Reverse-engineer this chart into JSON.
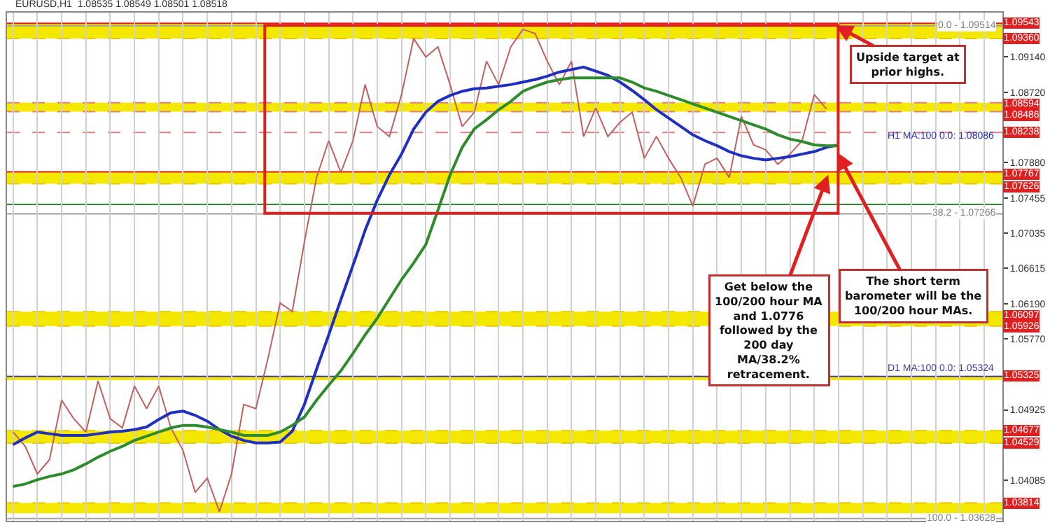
{
  "chart_data": {
    "type": "line",
    "categories": [
      null,
      null,
      null,
      null,
      null,
      null,
      null,
      null,
      null,
      null,
      null,
      null,
      null,
      null,
      null,
      null,
      null,
      null,
      null,
      null,
      null,
      null,
      null,
      null,
      null,
      null,
      null,
      null,
      null,
      null,
      null,
      null,
      null,
      null,
      null,
      null,
      null,
      null,
      null,
      null,
      null,
      null,
      null,
      null,
      null,
      null,
      null,
      null,
      null,
      null,
      null,
      null,
      null,
      null,
      null,
      null,
      null,
      null,
      null,
      null,
      null,
      null,
      null,
      null,
      null,
      null,
      null,
      null,
      null,
      null,
      null,
      null,
      null,
      null,
      null,
      null,
      null,
      null,
      null,
      null,
      null,
      null
    ],
    "series": [
      {
        "color": "#c06060",
        "values": [
          1.0466,
          1.0449,
          1.0416,
          1.0433,
          1.0504,
          1.0482,
          1.0466,
          1.0527,
          1.0482,
          1.0471,
          1.0521,
          1.0494,
          1.0521,
          1.0471,
          1.0444,
          1.0394,
          1.0411,
          1.0371,
          1.0416,
          1.0499,
          1.0494,
          1.0554,
          1.062,
          1.061,
          1.0693,
          1.077,
          1.0814,
          1.0776,
          1.0814,
          1.0881,
          1.0831,
          1.0819,
          1.0869,
          1.0936,
          1.0914,
          1.0926,
          1.0881,
          1.0831,
          1.0848,
          1.0909,
          1.0881,
          1.0926,
          1.0947,
          1.0942,
          1.0909,
          1.0881,
          1.0909,
          1.0819,
          1.0853,
          1.0819,
          1.0836,
          1.0848,
          1.0793,
          1.0819,
          1.0793,
          1.077,
          1.0736,
          1.0786,
          1.0793,
          1.077,
          1.0843,
          1.0809,
          1.0803,
          1.0786,
          1.0798,
          1.0814,
          1.0869,
          1.0852,
          null,
          null,
          null,
          null,
          null,
          null,
          null,
          null,
          null,
          null,
          null,
          null,
          null,
          null
        ]
      },
      {
        "color": "#1f2fbf",
        "values": [
          1.0451,
          1.0459,
          1.0466,
          1.0464,
          1.0462,
          1.0462,
          1.0462,
          1.0464,
          1.0466,
          1.0467,
          1.0469,
          1.0472,
          1.0481,
          1.0489,
          1.0491,
          1.0486,
          1.0479,
          1.0469,
          1.0461,
          1.0456,
          1.0453,
          1.0453,
          1.0454,
          1.0467,
          1.0499,
          1.0541,
          1.0582,
          1.0624,
          1.0665,
          1.0707,
          1.0743,
          1.0773,
          1.0798,
          1.0828,
          1.0848,
          1.0861,
          1.0868,
          1.0873,
          1.0876,
          1.0877,
          1.0879,
          1.0881,
          1.0884,
          1.0887,
          1.0891,
          1.0896,
          1.0899,
          1.0902,
          1.0897,
          1.0892,
          1.0884,
          1.0874,
          1.0863,
          1.0851,
          1.0841,
          1.0831,
          1.0821,
          1.0814,
          1.0808,
          1.0801,
          1.0796,
          1.0793,
          1.0791,
          1.0793,
          1.0795,
          1.0798,
          1.0801,
          1.0806,
          1.0809,
          null,
          null,
          null,
          null,
          null,
          null,
          null,
          null,
          null,
          null,
          null,
          null,
          null
        ]
      },
      {
        "color": "#2e8b2e",
        "values": [
          1.0401,
          1.0404,
          1.0409,
          1.0413,
          1.0416,
          1.0421,
          1.0428,
          1.0436,
          1.0443,
          1.0449,
          1.0456,
          1.0461,
          1.0466,
          1.0471,
          1.0474,
          1.0474,
          1.0472,
          1.0469,
          1.0466,
          1.0462,
          1.0462,
          1.0462,
          1.0466,
          1.0474,
          1.0484,
          1.0504,
          1.0522,
          1.0539,
          1.056,
          1.0582,
          1.0602,
          1.0625,
          1.0648,
          1.0668,
          1.069,
          1.0731,
          1.0773,
          1.0806,
          1.0828,
          1.0839,
          1.0851,
          1.0861,
          1.0873,
          1.0879,
          1.0884,
          1.0887,
          1.0889,
          1.0889,
          1.0889,
          1.0889,
          1.0889,
          1.0884,
          1.0877,
          1.0873,
          1.0868,
          1.0863,
          1.0858,
          1.0853,
          1.0848,
          1.0843,
          1.0838,
          1.0833,
          1.0828,
          1.0821,
          1.0816,
          1.0813,
          1.0809,
          1.0808,
          1.0808,
          null,
          null,
          null,
          null,
          null,
          null,
          null,
          null,
          null,
          null,
          null,
          null,
          null
        ]
      }
    ],
    "ylim": [
      1.036,
      1.0967
    ],
    "yticks": [
      {
        "value": 1.0914,
        "label": "1.09140"
      },
      {
        "value": 1.0872,
        "label": "1.08720"
      },
      {
        "value": 1.0788,
        "label": "1.07880"
      },
      1.07455,
      1.07035,
      1.06615,
      {
        "value": 1.0619,
        "label": "1.06190"
      },
      {
        "value": 1.0577,
        "label": "1.05770"
      },
      1.04925,
      1.04085
    ],
    "bands": [
      {
        "axis": "y",
        "from": 1.0936,
        "to": 1.09543,
        "color": "#f5e800"
      },
      {
        "axis": "y",
        "from": 1.08486,
        "to": 1.08594,
        "color": "#f5e800"
      },
      {
        "axis": "y",
        "from": 1.07626,
        "to": 1.07767,
        "color": "#f5e800"
      },
      {
        "axis": "y",
        "from": 1.05926,
        "to": 1.06097,
        "color": "#f5e800"
      },
      {
        "axis": "y",
        "from": 1.0528,
        "to": 1.05325,
        "color": "#f5e800"
      },
      {
        "axis": "y",
        "from": 1.04529,
        "to": 1.04677,
        "color": "#f5e800"
      },
      {
        "axis": "y",
        "from": 1.0369,
        "to": 1.03814,
        "color": "#f5e800"
      }
    ],
    "ref_lines": [
      {
        "axis": "y",
        "value": 1.09543,
        "label": "1.09543",
        "color": "#e02020",
        "line_style": "solid"
      },
      {
        "axis": "y",
        "value": 1.09514,
        "label": null,
        "color": "#a0a0a0",
        "line_style": "solid"
      },
      {
        "axis": "y",
        "value": 1.0936,
        "label": "1.09360",
        "color": "#e8c800",
        "line_style": "dashed"
      },
      {
        "axis": "y",
        "value": 1.08594,
        "label": "1.08594",
        "color": "#e08080",
        "line_style": "dashed"
      },
      {
        "axis": "y",
        "value": 1.08486,
        "label": "1.08486",
        "color": "#e08080",
        "line_style": "dashed"
      },
      {
        "axis": "y",
        "value": 1.08238,
        "label": "1.08238",
        "color": "#e08080",
        "line_style": "dashed"
      },
      {
        "axis": "y",
        "value": 1.07767,
        "label": "1.07767",
        "color": "#e02020",
        "line_style": "solid"
      },
      {
        "axis": "y",
        "value": 1.07626,
        "label": "1.07626",
        "color": "#e8c800",
        "line_style": "dashed"
      },
      {
        "axis": "y",
        "value": 1.0738,
        "label": null,
        "color": "#2e8b2e",
        "line_style": "solid"
      },
      {
        "axis": "y",
        "value": 1.07266,
        "label": null,
        "color": "#a0a0a0",
        "line_style": "solid"
      },
      {
        "axis": "y",
        "value": 1.06097,
        "label": "1.06097",
        "color": "#e8c800",
        "line_style": "dashed"
      },
      {
        "axis": "y",
        "value": 1.05926,
        "label": "1.05926",
        "color": "#e8c800",
        "line_style": "dashed"
      },
      {
        "axis": "y",
        "value": 1.05325,
        "label": "1.05325",
        "color": "#e8c800",
        "line_style": "dashed"
      },
      {
        "axis": "y",
        "value": 1.05324,
        "label": "D1 MA:100 0.0: 1.05324",
        "color": "#4040a0",
        "line_style": "solid"
      },
      {
        "axis": "y",
        "value": 1.04677,
        "label": "1.04677",
        "color": "#e8c800",
        "line_style": "dashed"
      },
      {
        "axis": "y",
        "value": 1.04529,
        "label": "1.04529",
        "color": "#e8c800",
        "line_style": "dashed"
      },
      {
        "axis": "y",
        "value": 1.03814,
        "label": "1.03814",
        "color": "#e8c800",
        "line_style": "dashed"
      },
      {
        "axis": "y",
        "value": 1.03628,
        "label": null,
        "color": "#a0a0a0",
        "line_style": "solid"
      }
    ],
    "annotations": [
      "EURUSD,H1  1.08535 1.08549 1.08501 1.08518",
      "Upside target at\nprior highs.",
      "Get below the\n100/200 hour MA\nand 1.0776\nfollowed by the\n200 day\nMA/38.2%\nretracement.",
      "The short term\nbarometer will be the\n100/200 hour MAs.",
      "H1 MA:100 0.0: 1.08086",
      {
        "text": "0.0 - 1.09514",
        "y": 1.09514
      },
      {
        "text": "38.2 - 1.07266",
        "y": 1.07266
      },
      {
        "text": "100.0 - 1.03628",
        "y": 1.03628
      }
    ],
    "grid": "x",
    "marker": "none",
    "line_style": "solid"
  }
}
